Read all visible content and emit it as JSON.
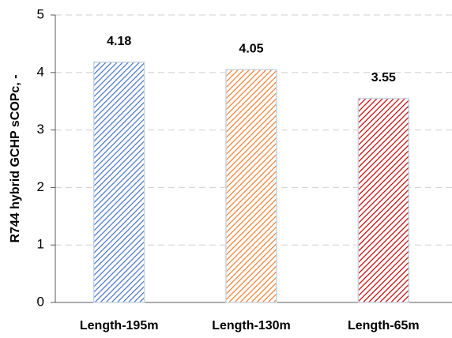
{
  "chart_data": {
    "type": "bar",
    "y_label": "R744 hybrid GCHP sCOPc, -",
    "categories": [
      "Length-195m",
      "Length-130m",
      "Length-65m"
    ],
    "values": [
      4.18,
      4.05,
      3.55
    ],
    "colors": [
      "#4472c4",
      "#ed7d31",
      "#c00000"
    ],
    "ylim": [
      0,
      5
    ],
    "yticks": [
      0,
      1,
      2,
      3,
      4,
      5
    ],
    "grid": true
  }
}
